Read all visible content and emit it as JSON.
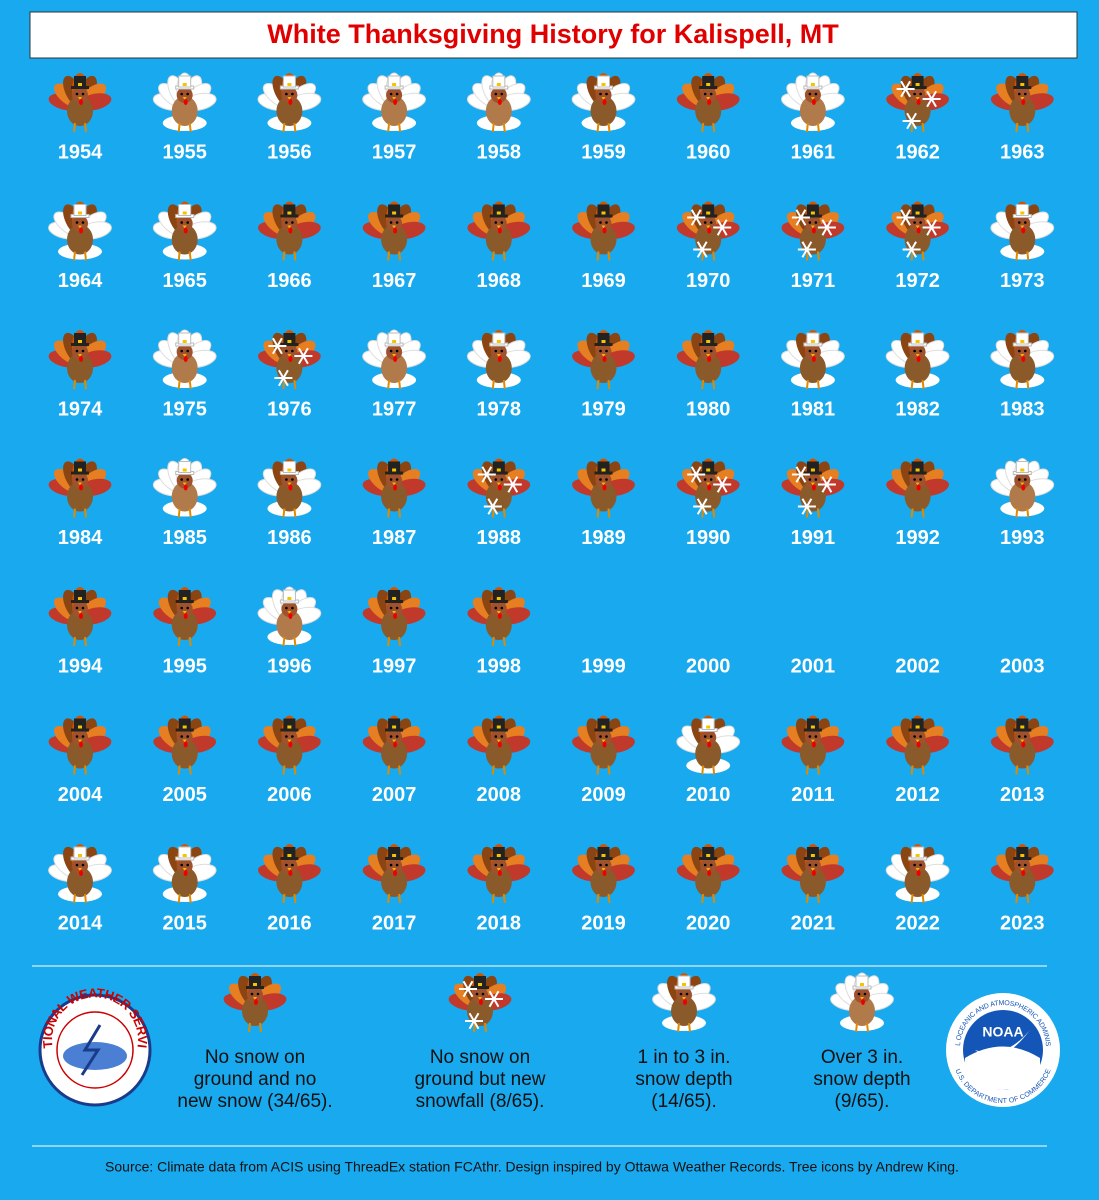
{
  "title": "White Thanksgiving History for Kalispell, MT",
  "years": [
    {
      "year": "1954",
      "icon": "none"
    },
    {
      "year": "1955",
      "icon": "deep"
    },
    {
      "year": "1956",
      "icon": "light"
    },
    {
      "year": "1957",
      "icon": "deep"
    },
    {
      "year": "1958",
      "icon": "deep"
    },
    {
      "year": "1959",
      "icon": "light"
    },
    {
      "year": "1960",
      "icon": "none"
    },
    {
      "year": "1961",
      "icon": "deep"
    },
    {
      "year": "1962",
      "icon": "snowfall"
    },
    {
      "year": "1963",
      "icon": "none"
    },
    {
      "year": "1964",
      "icon": "light"
    },
    {
      "year": "1965",
      "icon": "light"
    },
    {
      "year": "1966",
      "icon": "none"
    },
    {
      "year": "1967",
      "icon": "none"
    },
    {
      "year": "1968",
      "icon": "none"
    },
    {
      "year": "1969",
      "icon": "none"
    },
    {
      "year": "1970",
      "icon": "snowfall"
    },
    {
      "year": "1971",
      "icon": "snowfall"
    },
    {
      "year": "1972",
      "icon": "snowfall"
    },
    {
      "year": "1973",
      "icon": "light"
    },
    {
      "year": "1974",
      "icon": "none"
    },
    {
      "year": "1975",
      "icon": "deep"
    },
    {
      "year": "1976",
      "icon": "snowfall"
    },
    {
      "year": "1977",
      "icon": "deep"
    },
    {
      "year": "1978",
      "icon": "light"
    },
    {
      "year": "1979",
      "icon": "none"
    },
    {
      "year": "1980",
      "icon": "none"
    },
    {
      "year": "1981",
      "icon": "light"
    },
    {
      "year": "1982",
      "icon": "light"
    },
    {
      "year": "1983",
      "icon": "light"
    },
    {
      "year": "1984",
      "icon": "none"
    },
    {
      "year": "1985",
      "icon": "deep"
    },
    {
      "year": "1986",
      "icon": "light"
    },
    {
      "year": "1987",
      "icon": "none"
    },
    {
      "year": "1988",
      "icon": "snowfall"
    },
    {
      "year": "1989",
      "icon": "none"
    },
    {
      "year": "1990",
      "icon": "snowfall"
    },
    {
      "year": "1991",
      "icon": "snowfall"
    },
    {
      "year": "1992",
      "icon": "none"
    },
    {
      "year": "1993",
      "icon": "deep"
    },
    {
      "year": "1994",
      "icon": "none"
    },
    {
      "year": "1995",
      "icon": "none"
    },
    {
      "year": "1996",
      "icon": "deep"
    },
    {
      "year": "1997",
      "icon": "none"
    },
    {
      "year": "1998",
      "icon": "none"
    },
    {
      "year": "1999",
      "icon": null
    },
    {
      "year": "2000",
      "icon": null
    },
    {
      "year": "2001",
      "icon": null
    },
    {
      "year": "2002",
      "icon": null
    },
    {
      "year": "2003",
      "icon": null
    },
    {
      "year": "2004",
      "icon": "none"
    },
    {
      "year": "2005",
      "icon": "none"
    },
    {
      "year": "2006",
      "icon": "none"
    },
    {
      "year": "2007",
      "icon": "none"
    },
    {
      "year": "2008",
      "icon": "none"
    },
    {
      "year": "2009",
      "icon": "none"
    },
    {
      "year": "2010",
      "icon": "light"
    },
    {
      "year": "2011",
      "icon": "none"
    },
    {
      "year": "2012",
      "icon": "none"
    },
    {
      "year": "2013",
      "icon": "none"
    },
    {
      "year": "2014",
      "icon": "light"
    },
    {
      "year": "2015",
      "icon": "light"
    },
    {
      "year": "2016",
      "icon": "none"
    },
    {
      "year": "2017",
      "icon": "none"
    },
    {
      "year": "2018",
      "icon": "none"
    },
    {
      "year": "2019",
      "icon": "none"
    },
    {
      "year": "2020",
      "icon": "none"
    },
    {
      "year": "2021",
      "icon": "none"
    },
    {
      "year": "2022",
      "icon": "light"
    },
    {
      "year": "2023",
      "icon": "none"
    }
  ],
  "legend": [
    {
      "icon": "none",
      "lines": [
        "No snow on",
        "ground and no",
        "new snow (34/65)."
      ]
    },
    {
      "icon": "snowfall",
      "lines": [
        "No snow on",
        "ground but new",
        "snowfall (8/65)."
      ]
    },
    {
      "icon": "light",
      "lines": [
        "1 in to 3 in.",
        "snow depth",
        "(14/65)."
      ]
    },
    {
      "icon": "deep",
      "lines": [
        "Over 3 in.",
        "snow depth",
        "(9/65)."
      ]
    }
  ],
  "logos": {
    "nws": "NATIONAL WEATHER SERVICE",
    "noaa": "NOAA",
    "noaa_ring": "NATIONAL OCEANIC AND ATMOSPHERIC ADMINISTRATION",
    "noaa_bottom": "U.S. DEPARTMENT OF COMMERCE"
  },
  "source": "Source: Climate data from ACIS using ThreadEx station FCAthr. Design inspired by Ottawa Weather Records. Tree icons by Andrew King."
}
